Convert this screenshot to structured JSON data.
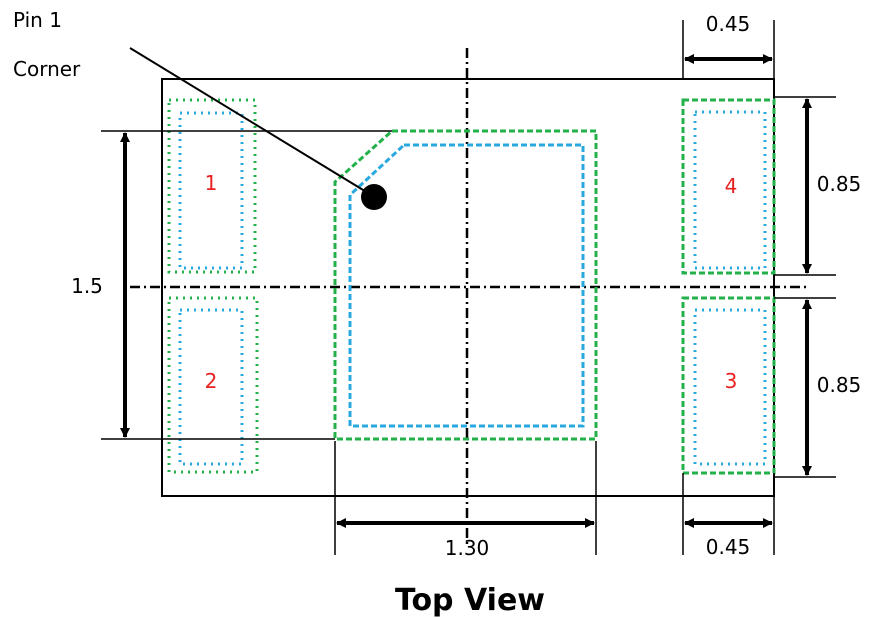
{
  "callout": {
    "line1": "Pin 1",
    "line2": "Corner"
  },
  "pins": [
    "1",
    "2",
    "3",
    "4"
  ],
  "dimensions": {
    "pad_width_top": "0.45",
    "pad_width_bottom": "0.45",
    "pad_height_upper": "0.85",
    "pad_height_lower": "0.85",
    "overall_height": "1.5",
    "center_pad_width": "1.30"
  },
  "title": "Top View",
  "colors": {
    "outline": "#000000",
    "green_pattern": "#22b04a",
    "blue_pattern": "#29a8e0",
    "pin_label": "#e8201f"
  }
}
